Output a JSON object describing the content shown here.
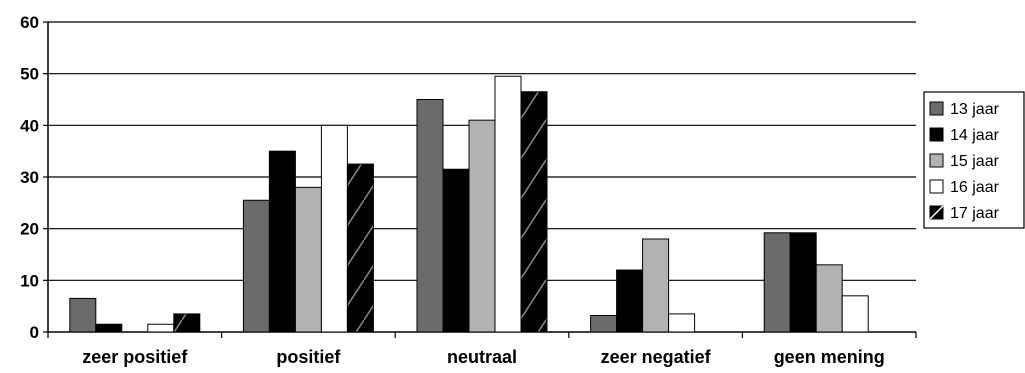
{
  "chart_data": {
    "type": "bar",
    "categories": [
      "zeer positief",
      "positief",
      "neutraal",
      "zeer negatief",
      "geen mening"
    ],
    "series": [
      {
        "name": "13 jaar",
        "values": [
          6.5,
          25.5,
          45,
          3.2,
          19.2
        ],
        "color": "#6b6b6b",
        "pattern": "solid"
      },
      {
        "name": "14 jaar",
        "values": [
          1.5,
          35,
          31.5,
          12,
          19.2
        ],
        "color": "#000000",
        "pattern": "solid"
      },
      {
        "name": "15 jaar",
        "values": [
          0,
          28,
          41,
          18,
          13
        ],
        "color": "#b3b3b3",
        "pattern": "solid"
      },
      {
        "name": "16 jaar",
        "values": [
          1.5,
          40,
          49.5,
          3.5,
          7
        ],
        "color": "#ffffff",
        "pattern": "solid"
      },
      {
        "name": "17 jaar",
        "values": [
          3.5,
          32.5,
          46.5,
          0,
          0
        ],
        "color": "#000000",
        "pattern": "hatch"
      }
    ],
    "title": "",
    "xlabel": "",
    "ylabel": "",
    "ylim": [
      0,
      60
    ],
    "yticks": [
      0,
      10,
      20,
      30,
      40,
      50,
      60
    ],
    "grid": true,
    "legend": "right"
  }
}
